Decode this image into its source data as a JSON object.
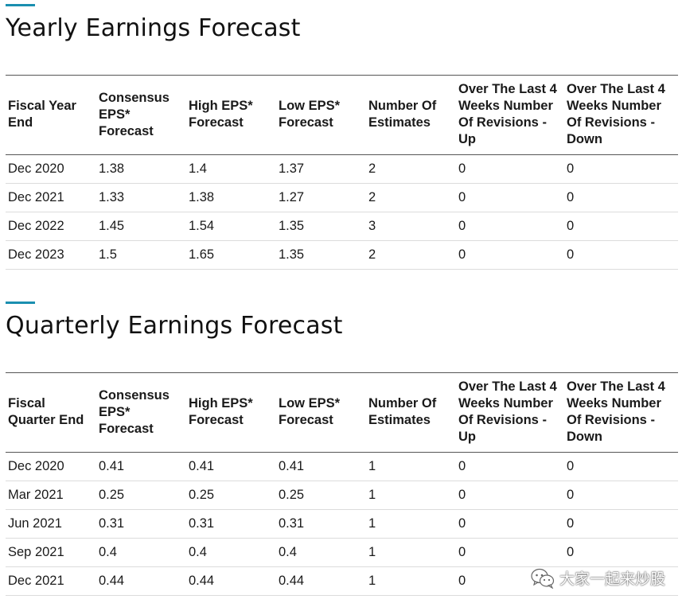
{
  "yearly": {
    "title": "Yearly Earnings Forecast",
    "headers": [
      "Fiscal Year End",
      "Consensus EPS* Forecast",
      "High EPS* Forecast",
      "Low EPS* Forecast",
      "Number Of Estimates",
      "Over The Last 4 Weeks Number Of Revisions - Up",
      "Over The Last 4 Weeks Number Of Revisions - Down"
    ],
    "rows": [
      [
        "Dec 2020",
        "1.38",
        "1.4",
        "1.37",
        "2",
        "0",
        "0"
      ],
      [
        "Dec 2021",
        "1.33",
        "1.38",
        "1.27",
        "2",
        "0",
        "0"
      ],
      [
        "Dec 2022",
        "1.45",
        "1.54",
        "1.35",
        "3",
        "0",
        "0"
      ],
      [
        "Dec 2023",
        "1.5",
        "1.65",
        "1.35",
        "2",
        "0",
        "0"
      ]
    ]
  },
  "quarterly": {
    "title": "Quarterly Earnings Forecast",
    "headers": [
      "Fiscal Quarter End",
      "Consensus EPS* Forecast",
      "High EPS* Forecast",
      "Low EPS* Forecast",
      "Number Of Estimates",
      "Over The Last 4 Weeks Number Of Revisions - Up",
      "Over The Last 4 Weeks Number Of Revisions - Down"
    ],
    "rows": [
      [
        "Dec 2020",
        "0.41",
        "0.41",
        "0.41",
        "1",
        "0",
        "0"
      ],
      [
        "Mar 2021",
        "0.25",
        "0.25",
        "0.25",
        "1",
        "0",
        "0"
      ],
      [
        "Jun 2021",
        "0.31",
        "0.31",
        "0.31",
        "1",
        "0",
        "0"
      ],
      [
        "Sep 2021",
        "0.4",
        "0.4",
        "0.4",
        "1",
        "0",
        "0"
      ],
      [
        "Dec 2021",
        "0.44",
        "0.44",
        "0.44",
        "1",
        "0",
        ""
      ]
    ]
  },
  "watermark": {
    "text": "大家一起来炒股",
    "icon": "wechat-icon"
  },
  "colors": {
    "accent": "#1a8fb0",
    "rule": "#555555",
    "row_divider": "#dcdcdc"
  }
}
